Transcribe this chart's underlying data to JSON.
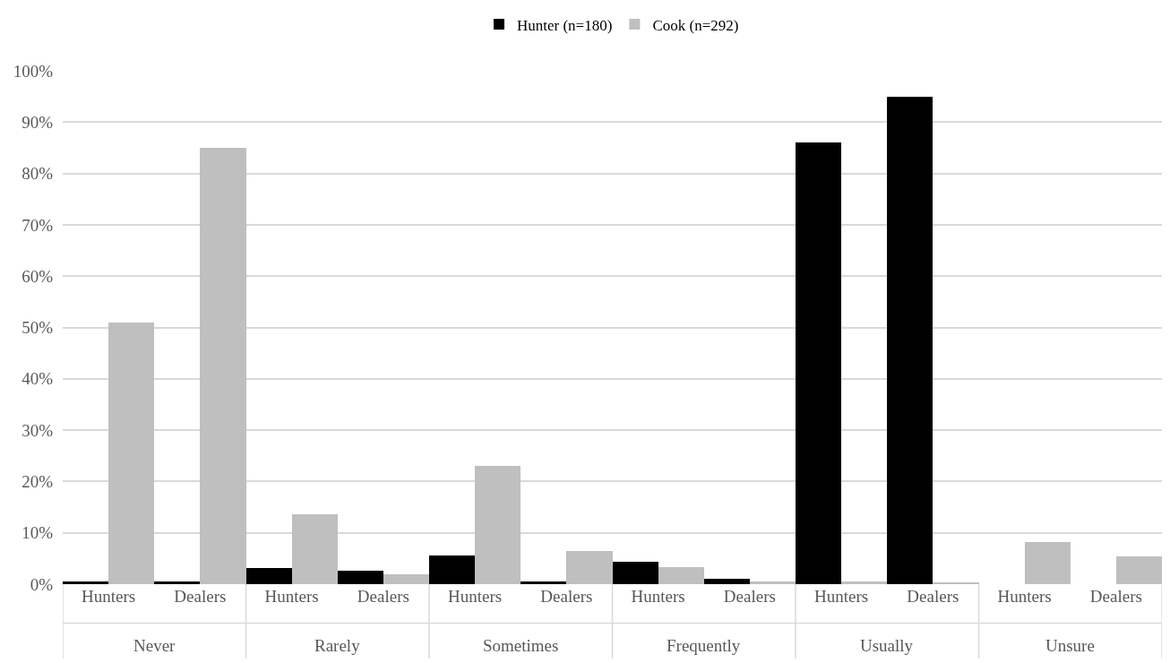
{
  "chart_data": {
    "type": "bar",
    "categories": [
      "Hunters",
      "Dealers",
      "Hunters",
      "Dealers",
      "Hunters",
      "Dealers",
      "Hunters",
      "Dealers",
      "Hunters",
      "Dealers",
      "Hunters",
      "Dealers"
    ],
    "series": [
      {
        "name": "Hunter (n=180)",
        "color": "#000000",
        "values": [
          0.5,
          0.5,
          3.2,
          2.7,
          5.5,
          0.5,
          4.4,
          1.0,
          86,
          95,
          0,
          0
        ]
      },
      {
        "name": "Cook (n=292)",
        "color": "#bfbfbf",
        "values": [
          51,
          85,
          13.6,
          1.9,
          23,
          6.5,
          3.3,
          0.6,
          0.6,
          0.3,
          8.2,
          5.4
        ]
      }
    ],
    "annotations": [
      "Never",
      "Rarely",
      "Sometimes",
      "Frequently",
      "Usually",
      "Unsure"
    ],
    "ylim": [
      0,
      100
    ],
    "yticks": [
      {
        "value": 0,
        "label": "0%"
      },
      {
        "value": 10,
        "label": "10%"
      },
      {
        "value": 20,
        "label": "20%"
      },
      {
        "value": 30,
        "label": "30%"
      },
      {
        "value": 40,
        "label": "40%"
      },
      {
        "value": 50,
        "label": "50%"
      },
      {
        "value": 60,
        "label": "60%"
      },
      {
        "value": 70,
        "label": "70%"
      },
      {
        "value": 80,
        "label": "80%"
      },
      {
        "value": 90,
        "label": "90%"
      },
      {
        "value": 100,
        "label": "100%"
      }
    ],
    "grid": "y",
    "legend": "top"
  }
}
